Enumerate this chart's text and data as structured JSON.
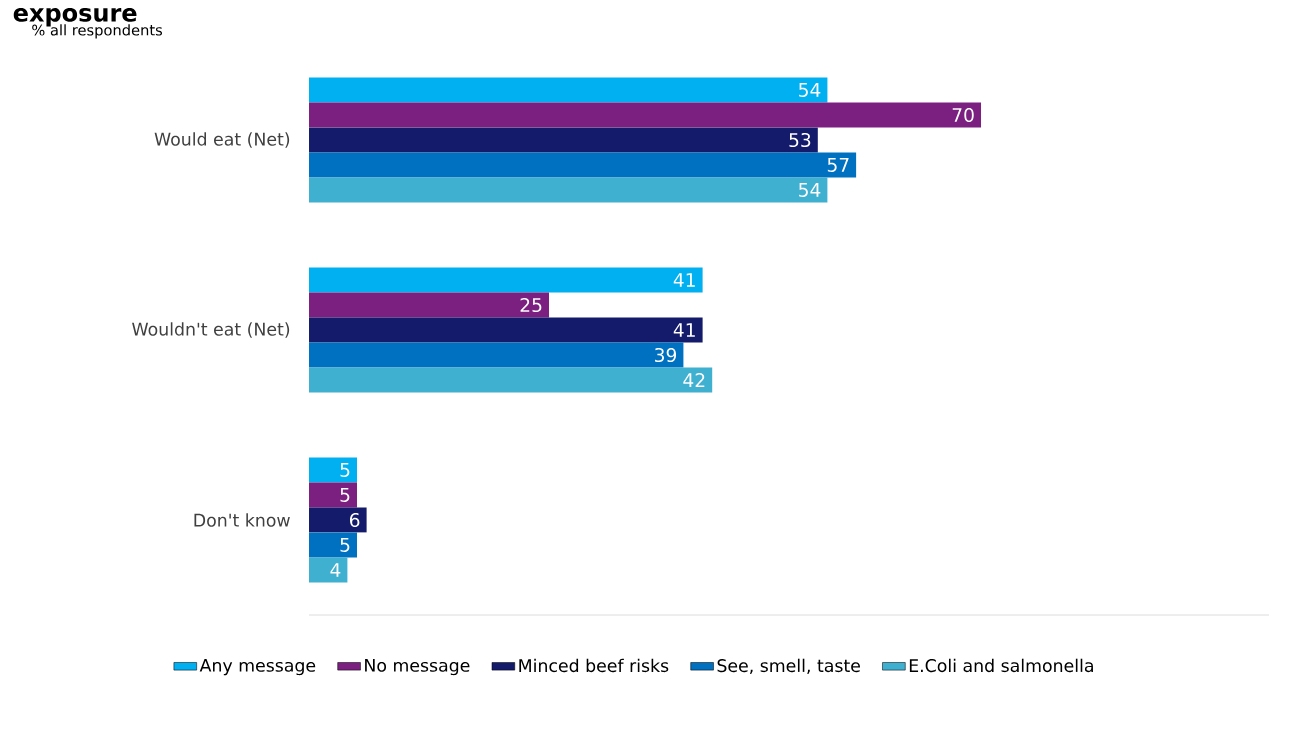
{
  "chart_data": {
    "type": "bar",
    "orientation": "horizontal",
    "title": "exposure",
    "subtitle": "% all respondents",
    "categories": [
      "Would eat (Net)",
      "Wouldn't eat (Net)",
      "Don't know"
    ],
    "series": [
      {
        "name": "Any message",
        "color": "#00b0f0",
        "values": [
          54,
          41,
          5
        ]
      },
      {
        "name": "No message",
        "color": "#7b2081",
        "values": [
          70,
          25,
          5
        ]
      },
      {
        "name": "Minced beef risks",
        "color": "#141b6b",
        "values": [
          53,
          41,
          6
        ]
      },
      {
        "name": "See, smell, taste",
        "color": "#0070c0",
        "values": [
          57,
          39,
          5
        ]
      },
      {
        "name": "E.Coli and salmonella",
        "color": "#40b0d0",
        "values": [
          54,
          42,
          4
        ]
      }
    ],
    "xlim": [
      0,
      100
    ],
    "data_labels": true,
    "legend": "bottom",
    "tick_labels": "y",
    "grid": false
  }
}
